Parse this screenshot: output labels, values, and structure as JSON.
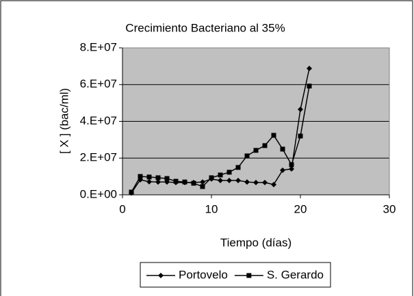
{
  "chart_data": {
    "type": "line",
    "title": "Crecimiento Bacteriano al 35%",
    "x_label": "Tiempo (días)",
    "y_label": "[ X ] (bac/ml)",
    "x": [
      1,
      2,
      3,
      4,
      5,
      6,
      7,
      8,
      9,
      10,
      11,
      12,
      13,
      14,
      15,
      16,
      17,
      18,
      19,
      20,
      21
    ],
    "series": [
      {
        "name": "Portovelo",
        "color": "#000000",
        "marker": "diamond",
        "values": [
          1000000,
          8200000,
          7100000,
          7000000,
          7000000,
          6700000,
          6700000,
          6700000,
          7000000,
          8600000,
          7800000,
          7800000,
          7800000,
          7000000,
          6700000,
          6700000,
          5600000,
          13400000,
          14100000,
          46500000,
          68800000
        ]
      },
      {
        "name": "S. Gerardo",
        "color": "#000000",
        "marker": "square",
        "values": [
          1500000,
          10000000,
          9700000,
          9300000,
          8900000,
          7400000,
          7000000,
          6300000,
          4500000,
          9300000,
          10800000,
          12300000,
          14900000,
          21200000,
          24200000,
          26800000,
          32400000,
          24900000,
          16400000,
          32000000,
          59200000
        ]
      }
    ],
    "xlim": [
      0,
      30
    ],
    "xticks": [
      0,
      10,
      20,
      30
    ],
    "ylim": [
      0,
      80000000
    ],
    "yticks": [
      {
        "value": 0,
        "label": "0.E+00"
      },
      {
        "value": 20000000,
        "label": "2.E+07"
      },
      {
        "value": 40000000,
        "label": "4.E+07"
      },
      {
        "value": 60000000,
        "label": "6.E+07"
      },
      {
        "value": 80000000,
        "label": "8.E+07"
      }
    ],
    "grid": true,
    "plot_background": "#C0C0C0",
    "legend": "bottom"
  }
}
